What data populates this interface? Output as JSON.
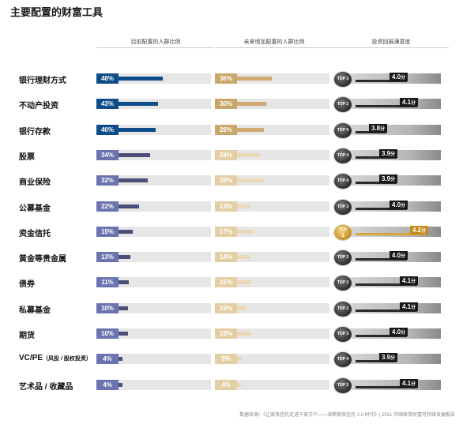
{
  "title": "主要配置的财富工具",
  "columns": [
    "目前配置的人群比例",
    "未来增加配置的人群比例",
    "投资回报满意度"
  ],
  "unit": "分",
  "footnote": "数据来源：《让家族信托走进千家万户——深耕家族信托 2.0 时代》| 2021 中国家族财富可持续发展报告",
  "colors": {
    "current_badge_dark": "#0f4c8a",
    "current_badge_light": "#6b74b0",
    "current_fill_dark": "#0f4c8a",
    "current_fill_light": "#4a4e78",
    "future_badge_dark": "#c9a76a",
    "future_badge_light": "#e4cfa4",
    "future_fill_dark": "#cfa872",
    "future_fill_light": "#ead9b8"
  },
  "chart_data": {
    "type": "bar",
    "categories": [
      "银行理财方式",
      "不动产投资",
      "银行存款",
      "股票",
      "商业保险",
      "公募基金",
      "资金信托",
      "黄金等贵金属",
      "债券",
      "私募基金",
      "期货",
      "VC/PE（风投/股权投资）",
      "艺术品/收藏品"
    ],
    "category_main": [
      "银行理财方式",
      "不动产投资",
      "银行存款",
      "股票",
      "商业保险",
      "公募基金",
      "资金信托",
      "黄金等贵金属",
      "债券",
      "私募基金",
      "期货",
      "VC/PE",
      "艺术品 / 收藏品"
    ],
    "category_note": [
      "",
      "",
      "",
      "",
      "",
      "",
      "",
      "",
      "",
      "",
      "",
      "（风投 / 股权投资）",
      ""
    ],
    "series": [
      {
        "name": "目前配置的人群比例",
        "values": [
          48,
          43,
          40,
          34,
          32,
          22,
          15,
          13,
          11,
          10,
          10,
          4,
          4
        ],
        "labels": [
          "48%",
          "43%",
          "40%",
          "34%",
          "32%",
          "22%",
          "15%",
          "13%",
          "11%",
          "10%",
          "10%",
          "4%",
          "4%"
        ]
      },
      {
        "name": "未来增加配置的人群比例",
        "values": [
          36,
          30,
          28,
          24,
          28,
          13,
          17,
          14,
          15,
          10,
          15,
          5,
          4
        ],
        "labels": [
          "36%",
          "30%",
          "28%",
          "24%",
          "28%",
          "13%",
          "17%",
          "14%",
          "15%",
          "10%",
          "15%",
          "5%",
          "4%"
        ]
      },
      {
        "name": "投资回报满意度",
        "values": [
          4.0,
          4.1,
          3.8,
          3.9,
          3.9,
          4.0,
          4.2,
          4.0,
          4.1,
          4.1,
          4.0,
          3.9,
          4.1
        ],
        "labels": [
          "4.0",
          "4.1",
          "3.8",
          "3.9",
          "3.9",
          "4.0",
          "4.2",
          "4.0",
          "4.1",
          "4.1",
          "4.0",
          "3.9",
          "4.1"
        ],
        "ranks": [
          "TOP 3",
          "TOP 2",
          "TOP 5",
          "TOP 4",
          "TOP 4",
          "TOP 3",
          "TOP 1",
          "TOP 3",
          "TOP 2",
          "TOP 2",
          "TOP 3",
          "TOP 4",
          "TOP 2"
        ]
      }
    ],
    "satisfaction_range": [
      3.5,
      4.3
    ]
  }
}
